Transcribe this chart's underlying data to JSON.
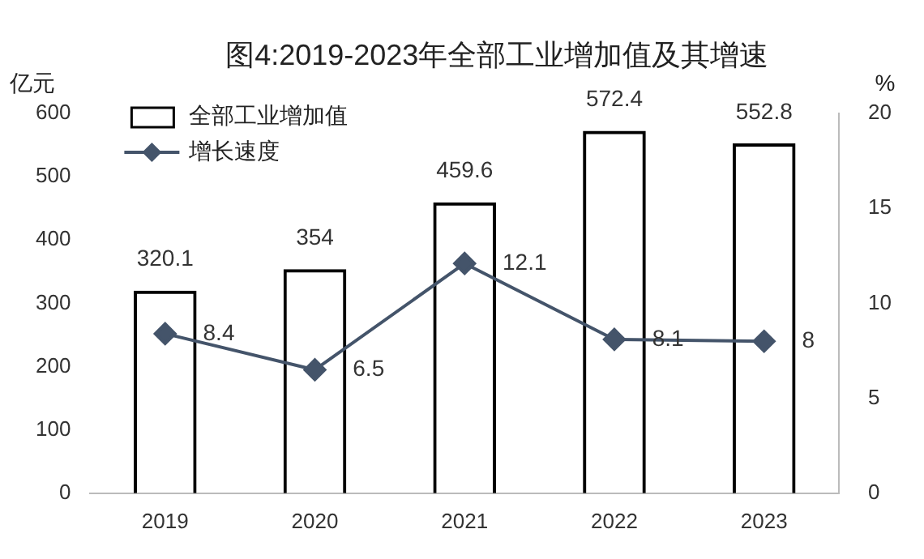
{
  "chart_data": {
    "type": "bar",
    "title": "图4:2019-2023年全部工业增加值及其增速",
    "ylabel": "亿元",
    "y2label": "%",
    "categories": [
      "2019",
      "2020",
      "2021",
      "2022",
      "2023"
    ],
    "series": [
      {
        "name": "全部工业增加值",
        "color": "#000000",
        "values": [
          320.1,
          354,
          459.6,
          572.4,
          552.8
        ]
      },
      {
        "name": "增长速度",
        "type": "line",
        "axis": "y2",
        "color": "#44546a",
        "values": [
          8.4,
          6.5,
          12.1,
          8.1,
          8
        ]
      }
    ],
    "ylim": [
      0,
      600
    ],
    "yticks": [
      0,
      100,
      200,
      300,
      400,
      500,
      600
    ],
    "y2lim": [
      0,
      20
    ],
    "y2ticks": [
      0,
      5,
      10,
      15,
      20
    ],
    "data_labels": true,
    "legend": "top left",
    "marker": "diamond",
    "grid": false
  }
}
